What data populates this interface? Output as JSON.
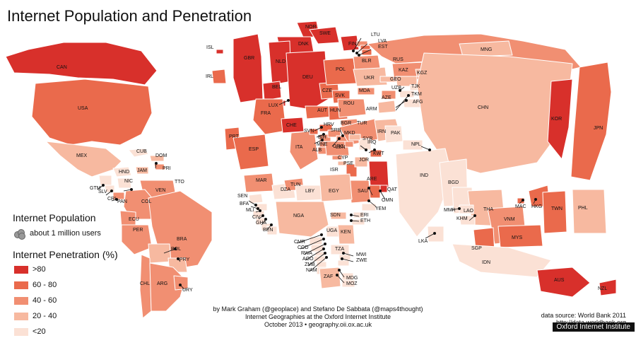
{
  "title": "Internet Population and Penetration",
  "legend": {
    "population_heading": "Internet Population",
    "population_item": "about 1 million users",
    "penetration_heading": "Internet Penetration (%)",
    "classes": [
      {
        "label": ">80",
        "color": "#d8302b"
      },
      {
        "label": "60 - 80",
        "color": "#ea6a4c"
      },
      {
        "label": "40 - 60",
        "color": "#f18f72"
      },
      {
        "label": "20 - 40",
        "color": "#f7b9a0"
      },
      {
        "label": "<20",
        "color": "#fbe1d5"
      }
    ]
  },
  "credits": {
    "line1": "by Mark Graham (@geoplace) and Stefano De Sabbata (@maps4thought)",
    "line2": "Internet Geographies at the Oxford Internet Institute",
    "line3": "October 2013 • geography.oii.ox.ac.uk"
  },
  "source": {
    "line1": "data source: World Bank 2011",
    "line2": "http://data.worldbank.org"
  },
  "institute": "Oxford Internet Institute",
  "countries": [
    {
      "code": "CAN",
      "cls": 0
    },
    {
      "code": "USA",
      "cls": 1
    },
    {
      "code": "MEX",
      "cls": 3
    },
    {
      "code": "CUB",
      "cls": 4
    },
    {
      "code": "DOM",
      "cls": 3
    },
    {
      "code": "HND",
      "cls": 4
    },
    {
      "code": "JAM",
      "cls": 3
    },
    {
      "code": "PRI",
      "cls": 2
    },
    {
      "code": "TTO",
      "cls": 2
    },
    {
      "code": "GTM",
      "cls": 4
    },
    {
      "code": "SLV",
      "cls": 4
    },
    {
      "code": "NIC",
      "cls": 4
    },
    {
      "code": "CRI",
      "cls": 2
    },
    {
      "code": "PAN",
      "cls": 2
    },
    {
      "code": "VEN",
      "cls": 2
    },
    {
      "code": "COL",
      "cls": 2
    },
    {
      "code": "ECU",
      "cls": 2
    },
    {
      "code": "PER",
      "cls": 2
    },
    {
      "code": "BRA",
      "cls": 2
    },
    {
      "code": "BOL",
      "cls": 3
    },
    {
      "code": "PRY",
      "cls": 3
    },
    {
      "code": "CHL",
      "cls": 2
    },
    {
      "code": "ARG",
      "cls": 2
    },
    {
      "code": "URY",
      "cls": 2
    },
    {
      "code": "ISL",
      "cls": 0
    },
    {
      "code": "IRL",
      "cls": 1
    },
    {
      "code": "GBR",
      "cls": 0
    },
    {
      "code": "NOR",
      "cls": 0
    },
    {
      "code": "SWE",
      "cls": 0
    },
    {
      "code": "DNK",
      "cls": 0
    },
    {
      "code": "FIN",
      "cls": 0
    },
    {
      "code": "LTU",
      "cls": 2
    },
    {
      "code": "LVA",
      "cls": 1
    },
    {
      "code": "EST",
      "cls": 1
    },
    {
      "code": "NLD",
      "cls": 0
    },
    {
      "code": "BEL",
      "cls": 0
    },
    {
      "code": "LUX",
      "cls": 0
    },
    {
      "code": "DEU",
      "cls": 0
    },
    {
      "code": "FRA",
      "cls": 1
    },
    {
      "code": "CHE",
      "cls": 0
    },
    {
      "code": "AUT",
      "cls": 1
    },
    {
      "code": "CZE",
      "cls": 1
    },
    {
      "code": "POL",
      "cls": 1
    },
    {
      "code": "SVK",
      "cls": 1
    },
    {
      "code": "HUN",
      "cls": 1
    },
    {
      "code": "PRT",
      "cls": 1
    },
    {
      "code": "ESP",
      "cls": 1
    },
    {
      "code": "ITA",
      "cls": 2
    },
    {
      "code": "SVN",
      "cls": 1
    },
    {
      "code": "HRV",
      "cls": 1
    },
    {
      "code": "BIH",
      "cls": 2
    },
    {
      "code": "SRB",
      "cls": 2
    },
    {
      "code": "MNE",
      "cls": 2
    },
    {
      "code": "ALB",
      "cls": 2
    },
    {
      "code": "MKD",
      "cls": 2
    },
    {
      "code": "GRC",
      "cls": 2
    },
    {
      "code": "BGR",
      "cls": 2
    },
    {
      "code": "ROU",
      "cls": 2
    },
    {
      "code": "MDA",
      "cls": 2
    },
    {
      "code": "UKR",
      "cls": 3
    },
    {
      "code": "BLR",
      "cls": 2
    },
    {
      "code": "RUS",
      "cls": 2
    },
    {
      "code": "TUR",
      "cls": 2
    },
    {
      "code": "GEO",
      "cls": 3
    },
    {
      "code": "ARM",
      "cls": 3
    },
    {
      "code": "AZE",
      "cls": 2
    },
    {
      "code": "KAZ",
      "cls": 2
    },
    {
      "code": "KGZ",
      "cls": 3
    },
    {
      "code": "UZB",
      "cls": 3
    },
    {
      "code": "TJK",
      "cls": 4
    },
    {
      "code": "TKM",
      "cls": 4
    },
    {
      "code": "AFG",
      "cls": 4
    },
    {
      "code": "MNG",
      "cls": 3
    },
    {
      "code": "CHN",
      "cls": 3
    },
    {
      "code": "KOR",
      "cls": 0
    },
    {
      "code": "JPN",
      "cls": 1
    },
    {
      "code": "IRN",
      "cls": 3
    },
    {
      "code": "PAK",
      "cls": 4
    },
    {
      "code": "IRQ",
      "cls": 4
    },
    {
      "code": "SYR",
      "cls": 3
    },
    {
      "code": "LBN",
      "cls": 2
    },
    {
      "code": "CYP",
      "cls": 2
    },
    {
      "code": "PSE",
      "cls": 3
    },
    {
      "code": "ISR",
      "cls": 1
    },
    {
      "code": "JOR",
      "cls": 3
    },
    {
      "code": "KWT",
      "cls": 1
    },
    {
      "code": "ARE",
      "cls": 0
    },
    {
      "code": "QAT",
      "cls": 0
    },
    {
      "code": "OMN",
      "cls": 1
    },
    {
      "code": "SAU",
      "cls": 2
    },
    {
      "code": "YEM",
      "cls": 4
    },
    {
      "code": "NPL",
      "cls": 4
    },
    {
      "code": "IND",
      "cls": 4
    },
    {
      "code": "BGD",
      "cls": 4
    },
    {
      "code": "LKA",
      "cls": 4
    },
    {
      "code": "MMR",
      "cls": 4
    },
    {
      "code": "THA",
      "cls": 3
    },
    {
      "code": "LAO",
      "cls": 4
    },
    {
      "code": "KHM",
      "cls": 4
    },
    {
      "code": "VNM",
      "cls": 2
    },
    {
      "code": "MAC",
      "cls": 1
    },
    {
      "code": "HKG",
      "cls": 1
    },
    {
      "code": "TWN",
      "cls": 1
    },
    {
      "code": "PHL",
      "cls": 3
    },
    {
      "code": "MYS",
      "cls": 1
    },
    {
      "code": "SGP",
      "cls": 1
    },
    {
      "code": "IDN",
      "cls": 4
    },
    {
      "code": "AUS",
      "cls": 0
    },
    {
      "code": "NZL",
      "cls": 0
    },
    {
      "code": "MAR",
      "cls": 2
    },
    {
      "code": "DZA",
      "cls": 4
    },
    {
      "code": "TUN",
      "cls": 2
    },
    {
      "code": "LBY",
      "cls": 4
    },
    {
      "code": "EGY",
      "cls": 3
    },
    {
      "code": "SEN",
      "cls": 4
    },
    {
      "code": "BFA",
      "cls": 4
    },
    {
      "code": "MLI",
      "cls": 4
    },
    {
      "code": "CIV",
      "cls": 4
    },
    {
      "code": "GHA",
      "cls": 4
    },
    {
      "code": "BEN",
      "cls": 4
    },
    {
      "code": "NGA",
      "cls": 3
    },
    {
      "code": "SDN",
      "cls": 3
    },
    {
      "code": "ERI",
      "cls": 4
    },
    {
      "code": "ETH",
      "cls": 4
    },
    {
      "code": "UGA",
      "cls": 4
    },
    {
      "code": "KEN",
      "cls": 3
    },
    {
      "code": "CMR",
      "cls": 4
    },
    {
      "code": "COD",
      "cls": 4
    },
    {
      "code": "RWA",
      "cls": 4
    },
    {
      "code": "AGO",
      "cls": 4
    },
    {
      "code": "ZMB",
      "cls": 4
    },
    {
      "code": "NAM",
      "cls": 4
    },
    {
      "code": "TZA",
      "cls": 4
    },
    {
      "code": "MWI",
      "cls": 4
    },
    {
      "code": "ZWE",
      "cls": 4
    },
    {
      "code": "ZAF",
      "cls": 3
    },
    {
      "code": "MDG",
      "cls": 4
    },
    {
      "code": "MOZ",
      "cls": 4
    }
  ]
}
